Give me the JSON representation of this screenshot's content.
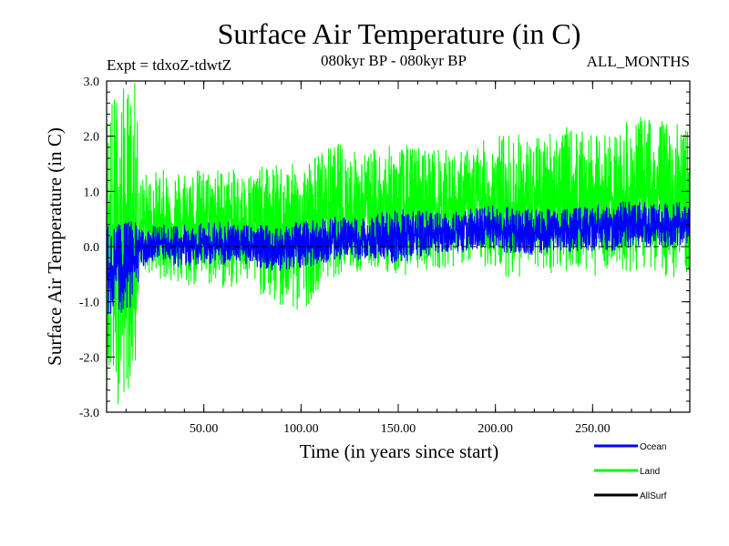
{
  "chart_data": {
    "type": "line",
    "title": "Surface Air Temperature (in C)",
    "subtitle_left": "Expt = tdxoZ-tdwtZ",
    "subtitle_center": "080kyr BP - 080kyr BP",
    "subtitle_right": "ALL_MONTHS",
    "xlabel": "Time (in years since start)",
    "ylabel": "Surface Air Temperature (in C)",
    "xlim": [
      0,
      300
    ],
    "ylim": [
      -3.0,
      3.0
    ],
    "x_ticks": [
      50,
      100,
      150,
      200,
      250
    ],
    "x_tick_labels": [
      "50.00",
      "100.00",
      "150.00",
      "200.00",
      "250.00"
    ],
    "y_ticks": [
      -3.0,
      -2.0,
      -1.0,
      0.0,
      1.0,
      2.0,
      3.0
    ],
    "y_tick_labels": [
      "-3.0",
      "-2.0",
      "-1.0",
      "0.0",
      "1.0",
      "2.0",
      "3.0"
    ],
    "zero_line": true,
    "legend_position": "bottom-right",
    "series": [
      {
        "name": "Ocean",
        "color": "#0000ff",
        "x": [
          0,
          5,
          10,
          15,
          17,
          20,
          30,
          40,
          50,
          60,
          70,
          80,
          90,
          100,
          110,
          120,
          130,
          140,
          150,
          160,
          170,
          180,
          190,
          200,
          210,
          220,
          230,
          240,
          250,
          260,
          270,
          280,
          290,
          300
        ],
        "mean": [
          -0.5,
          -0.4,
          -0.35,
          -0.3,
          0.0,
          0.0,
          0.05,
          0.0,
          0.05,
          0.0,
          0.05,
          0.0,
          -0.05,
          0.0,
          0.05,
          0.1,
          0.1,
          0.15,
          0.2,
          0.2,
          0.25,
          0.25,
          0.25,
          0.3,
          0.25,
          0.25,
          0.3,
          0.3,
          0.35,
          0.35,
          0.4,
          0.4,
          0.4,
          0.4
        ],
        "min": [
          -1.3,
          -1.2,
          -1.2,
          -1.1,
          -0.4,
          -0.35,
          -0.3,
          -0.4,
          -0.3,
          -0.35,
          -0.3,
          -0.4,
          -0.45,
          -0.4,
          -0.3,
          -0.25,
          -0.25,
          -0.2,
          -0.35,
          -0.2,
          -0.15,
          -0.15,
          -0.1,
          -0.1,
          -0.15,
          -0.15,
          -0.1,
          -0.1,
          -0.1,
          -0.1,
          -0.05,
          0.0,
          0.0,
          0.0
        ],
        "max": [
          0.4,
          0.4,
          0.45,
          0.5,
          0.3,
          0.35,
          0.4,
          0.4,
          0.45,
          0.45,
          0.4,
          0.4,
          0.4,
          0.45,
          0.5,
          0.55,
          0.5,
          0.6,
          0.7,
          0.65,
          0.65,
          0.65,
          0.7,
          0.75,
          0.7,
          0.7,
          0.7,
          0.7,
          0.75,
          0.8,
          0.85,
          0.8,
          0.8,
          0.8
        ]
      },
      {
        "name": "Land",
        "color": "#00ff00",
        "x": [
          0,
          5,
          10,
          15,
          17,
          20,
          30,
          40,
          50,
          60,
          70,
          80,
          90,
          100,
          110,
          120,
          130,
          140,
          150,
          160,
          170,
          180,
          190,
          200,
          210,
          220,
          230,
          240,
          250,
          260,
          270,
          280,
          290,
          300
        ],
        "mean": [
          0.0,
          0.05,
          0.0,
          0.0,
          0.35,
          0.4,
          0.4,
          0.4,
          0.45,
          0.45,
          0.45,
          0.4,
          0.4,
          0.45,
          0.55,
          0.6,
          0.6,
          0.65,
          0.7,
          0.7,
          0.7,
          0.75,
          0.75,
          0.8,
          0.75,
          0.75,
          0.8,
          0.8,
          0.85,
          0.85,
          0.9,
          0.9,
          0.9,
          0.9
        ],
        "min": [
          -2.6,
          -2.9,
          -2.7,
          -2.3,
          -0.3,
          -0.5,
          -0.6,
          -0.8,
          -0.7,
          -0.8,
          -0.7,
          -0.9,
          -1.2,
          -1.25,
          -0.7,
          -0.5,
          -0.5,
          -0.4,
          -0.55,
          -0.45,
          -0.4,
          -0.35,
          -0.3,
          -0.45,
          -0.6,
          -0.45,
          -0.5,
          -0.4,
          -0.55,
          -0.35,
          -0.5,
          -0.4,
          -0.6,
          -0.5
        ],
        "max": [
          2.7,
          2.9,
          2.95,
          3.0,
          1.3,
          1.35,
          1.4,
          1.45,
          1.4,
          1.45,
          1.35,
          1.45,
          1.5,
          1.5,
          1.75,
          1.9,
          1.7,
          1.8,
          1.85,
          1.85,
          1.8,
          1.7,
          1.85,
          2.05,
          2.1,
          1.95,
          2.2,
          2.15,
          2.0,
          2.1,
          2.3,
          2.4,
          2.25,
          2.2
        ]
      },
      {
        "name": "AllSurf",
        "color": "#000000",
        "x": [],
        "mean": [],
        "min": [],
        "max": []
      }
    ]
  }
}
